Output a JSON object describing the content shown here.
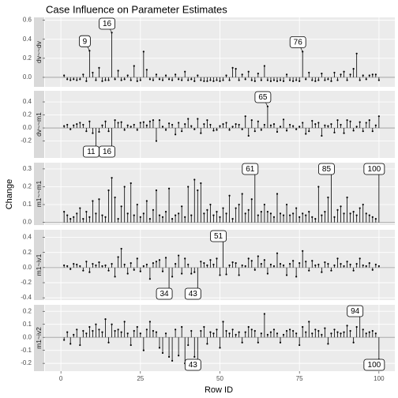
{
  "chart_data": {
    "type": "lollipop",
    "title": "Case Influence on Parameter Estimates",
    "xlabel": "Row ID",
    "ylabel": "Change",
    "xlim": [
      -5,
      105
    ],
    "xticks": [
      0,
      25,
      50,
      75,
      100
    ],
    "x": [
      1,
      2,
      3,
      4,
      5,
      6,
      7,
      8,
      9,
      10,
      11,
      12,
      13,
      14,
      15,
      16,
      17,
      18,
      19,
      20,
      21,
      22,
      23,
      24,
      25,
      26,
      27,
      28,
      29,
      30,
      31,
      32,
      33,
      34,
      35,
      36,
      37,
      38,
      39,
      40,
      41,
      42,
      43,
      44,
      45,
      46,
      47,
      48,
      49,
      50,
      51,
      52,
      53,
      54,
      55,
      56,
      57,
      58,
      59,
      60,
      61,
      62,
      63,
      64,
      65,
      66,
      67,
      68,
      69,
      70,
      71,
      72,
      73,
      74,
      75,
      76,
      77,
      78,
      79,
      80,
      81,
      82,
      83,
      84,
      85,
      86,
      87,
      88,
      89,
      90,
      91,
      92,
      93,
      94,
      95,
      96,
      97,
      98,
      99,
      100
    ],
    "panels": [
      {
        "strip": "dv~~dv",
        "ylim": [
          -0.1,
          0.63
        ],
        "yticks": [
          {
            "value": 0,
            "label": "0.0"
          },
          0.2,
          0.4,
          0.6
        ],
        "labels": [
          9,
          16,
          76
        ],
        "values": [
          0.02,
          -0.02,
          -0.03,
          -0.02,
          -0.03,
          -0.02,
          0.03,
          -0.04,
          0.28,
          0.05,
          -0.03,
          0.1,
          -0.04,
          -0.03,
          -0.03,
          0.47,
          -0.02,
          0.07,
          -0.03,
          -0.02,
          0.02,
          -0.03,
          0.12,
          -0.04,
          -0.03,
          0.27,
          0.08,
          -0.02,
          -0.03,
          0.03,
          -0.02,
          -0.03,
          0.02,
          -0.02,
          -0.03,
          0.03,
          -0.02,
          -0.03,
          0.06,
          -0.03,
          -0.02,
          -0.04,
          0.02,
          -0.03,
          -0.04,
          -0.04,
          -0.03,
          -0.04,
          -0.03,
          -0.04,
          -0.03,
          0.02,
          -0.03,
          0.1,
          0.09,
          -0.03,
          0.03,
          -0.02,
          0.06,
          -0.03,
          -0.04,
          0.04,
          -0.03,
          0.12,
          -0.03,
          -0.04,
          -0.03,
          -0.04,
          -0.03,
          -0.04,
          0.03,
          -0.03,
          -0.04,
          -0.03,
          -0.04,
          0.27,
          -0.02,
          0.05,
          -0.03,
          -0.04,
          -0.03,
          0.04,
          -0.03,
          -0.02,
          -0.04,
          0.05,
          -0.03,
          0.03,
          0.06,
          -0.03,
          0.03,
          0.09,
          0.25,
          -0.03,
          0.02,
          -0.02,
          0.02,
          0.03,
          0.03,
          -0.03
        ]
      },
      {
        "strip": "dv~~m1",
        "ylim": [
          -0.46,
          0.57
        ],
        "yticks": [
          -0.2,
          {
            "value": 0,
            "label": "0.0"
          },
          0.2,
          0.4
        ],
        "labels": [
          11,
          16,
          65
        ],
        "values": [
          0.03,
          0.05,
          -0.02,
          0.04,
          0.06,
          0.08,
          0.05,
          -0.05,
          0.1,
          -0.08,
          -0.4,
          -0.06,
          0.04,
          0.1,
          -0.05,
          -0.38,
          0.12,
          0.08,
          0.09,
          -0.03,
          0.04,
          0.02,
          0.05,
          -0.03,
          0.08,
          0.09,
          0.04,
          0.1,
          0.12,
          -0.2,
          0.12,
          0.02,
          -0.03,
          0.07,
          0.05,
          -0.1,
          0.08,
          -0.05,
          0.06,
          0.14,
          0.03,
          -0.02,
          0.14,
          -0.08,
          0.06,
          0.12,
          0.05,
          -0.04,
          -0.03,
          0.03,
          0.06,
          0.08,
          -0.03,
          0.02,
          0.06,
          0.05,
          -0.02,
          0.18,
          -0.12,
          0.12,
          -0.05,
          0.1,
          -0.03,
          0.05,
          0.33,
          0.04,
          0.06,
          -0.06,
          0.02,
          0.13,
          -0.04,
          0.05,
          0.03,
          -0.02,
          0.02,
          0.08,
          -0.09,
          -0.05,
          0.11,
          0.06,
          0.08,
          -0.12,
          0.04,
          0.03,
          0.06,
          -0.07,
          0.12,
          0.05,
          -0.08,
          0.12,
          0.1,
          -0.04,
          0.02,
          0.09,
          -0.05,
          0.08,
          0.12,
          -0.05,
          0.04,
          0.18
        ]
      },
      {
        "strip": "m1~~m1",
        "ylim": [
          -0.015,
          0.335
        ],
        "yticks": [
          {
            "value": 0,
            "label": "0.0"
          },
          0.1,
          0.2,
          0.3
        ],
        "labels": [
          61,
          85,
          100
        ],
        "values": [
          0.06,
          0.04,
          0.02,
          0.03,
          0.05,
          0.08,
          0.02,
          0.06,
          0.03,
          0.12,
          0.05,
          0.13,
          0.04,
          0.03,
          0.18,
          0.25,
          0.14,
          0.02,
          0.09,
          0.2,
          0.05,
          0.22,
          0.04,
          0.1,
          0.03,
          0.05,
          0.12,
          0.02,
          0.07,
          0.18,
          0.04,
          0.03,
          0.06,
          0.19,
          0.02,
          0.04,
          0.05,
          0.09,
          0.03,
          0.2,
          0.04,
          0.24,
          0.18,
          0.22,
          0.05,
          0.07,
          0.1,
          0.04,
          0.06,
          0.03,
          0.08,
          0.05,
          0.15,
          0.02,
          0.08,
          0.1,
          0.16,
          0.05,
          0.07,
          0.13,
          0.32,
          0.04,
          0.06,
          0.1,
          0.06,
          0.05,
          0.03,
          0.16,
          0.05,
          0.04,
          0.1,
          0.04,
          0.05,
          0.08,
          0.03,
          0.05,
          0.04,
          0.06,
          0.03,
          0.02,
          0.2,
          0.04,
          0.06,
          0.14,
          0.31,
          0.03,
          0.07,
          0.09,
          0.05,
          0.14,
          0.05,
          0.06,
          0.04,
          0.08,
          0.1,
          0.05,
          0.04,
          0.03,
          0.02,
          0.29
        ]
      },
      {
        "strip": "m1~iv1",
        "ylim": [
          -0.43,
          0.5
        ],
        "yticks": [
          -0.4,
          -0.2,
          {
            "value": 0,
            "label": "0.0"
          },
          0.2,
          0.4
        ],
        "labels": [
          34,
          43,
          51
        ],
        "values": [
          0.03,
          0.02,
          -0.02,
          0.05,
          0.04,
          0.02,
          -0.04,
          0.08,
          -0.06,
          0.05,
          0.03,
          0.07,
          0.02,
          0.03,
          -0.04,
          0.05,
          -0.12,
          0.14,
          0.25,
          0.04,
          -0.08,
          0.06,
          -0.03,
          0.12,
          -0.05,
          0.02,
          0.04,
          -0.15,
          0.06,
          0.08,
          0.1,
          -0.05,
          0.13,
          -0.33,
          -0.12,
          0.05,
          0.16,
          -0.08,
          0.12,
          0.04,
          -0.08,
          -0.06,
          -0.37,
          0.08,
          0.06,
          0.03,
          0.1,
          0.04,
          0.12,
          -0.1,
          0.38,
          -0.09,
          0.03,
          0.07,
          0.06,
          -0.1,
          0.03,
          0.02,
          0.12,
          0.09,
          -0.03,
          0.15,
          0.05,
          0.1,
          -0.08,
          0.04,
          0.02,
          0.19,
          0.05,
          0.03,
          -0.1,
          0.05,
          0.09,
          -0.12,
          0.06,
          0.22,
          0.08,
          -0.04,
          0.09,
          0.03,
          0.04,
          -0.06,
          0.07,
          0.05,
          -0.04,
          0.03,
          0.12,
          0.05,
          0.02,
          0.08,
          0.04,
          -0.04,
          0.05,
          0.12,
          0.03,
          0.02,
          0.06,
          -0.03,
          0.04,
          0.02
        ]
      },
      {
        "strip": "m1~iv2",
        "ylim": [
          -0.26,
          0.25
        ],
        "yticks": [
          -0.2,
          -0.1,
          {
            "value": 0,
            "label": "0.0"
          },
          0.1,
          0.2
        ],
        "labels": [
          43,
          94,
          100
        ],
        "values": [
          -0.02,
          0.04,
          -0.05,
          0.02,
          0.06,
          -0.06,
          0.05,
          0.03,
          0.08,
          0.05,
          0.1,
          0.06,
          0.04,
          0.14,
          -0.04,
          0.1,
          0.05,
          0.06,
          0.04,
          0.12,
          0.03,
          -0.06,
          0.05,
          0.08,
          0.03,
          -0.1,
          0.06,
          0.12,
          0.05,
          0.04,
          -0.08,
          -0.12,
          0.03,
          -0.15,
          -0.18,
          0.06,
          -0.14,
          0.08,
          -0.2,
          -0.06,
          0.05,
          -0.15,
          -0.24,
          0.05,
          0.08,
          -0.05,
          0.04,
          0.03,
          0.06,
          -0.08,
          0.12,
          0.05,
          0.03,
          0.06,
          0.02,
          0.04,
          -0.04,
          0.04,
          0.08,
          0.06,
          0.05,
          -0.04,
          0.03,
          0.18,
          0.02,
          0.04,
          0.06,
          0.03,
          -0.04,
          0.02,
          0.05,
          0.06,
          0.05,
          0.03,
          -0.06,
          0.08,
          0.04,
          0.12,
          0.03,
          0.06,
          0.05,
          0.02,
          0.07,
          -0.05,
          0.03,
          0.06,
          0.04,
          0.03,
          0.04,
          0.09,
          0.05,
          -0.04,
          0.08,
          0.2,
          0.06,
          0.03,
          0.04,
          0.05,
          0.03,
          -0.17
        ]
      }
    ]
  }
}
